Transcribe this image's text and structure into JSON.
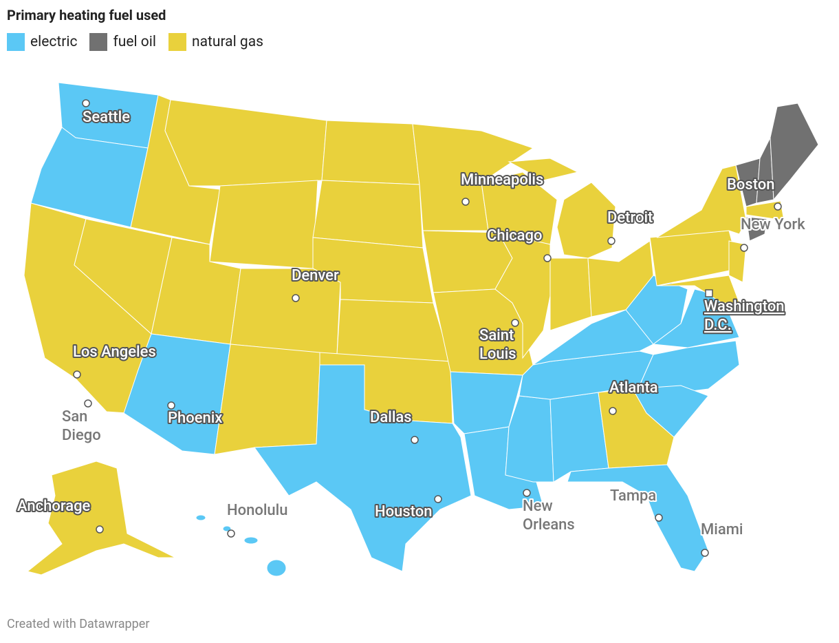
{
  "title": "Primary heating fuel used",
  "legend": [
    {
      "label": "electric",
      "color": "#5bc8f5"
    },
    {
      "label": "fuel oil",
      "color": "#717171"
    },
    {
      "label": "natural gas",
      "color": "#e9d13c"
    }
  ],
  "cities": [
    {
      "lines": [
        "Seattle"
      ]
    },
    {
      "lines": [
        "Minneapolis"
      ]
    },
    {
      "lines": [
        "Boston"
      ]
    },
    {
      "lines": [
        "Detroit"
      ]
    },
    {
      "lines": [
        "New York"
      ]
    },
    {
      "lines": [
        "Chicago"
      ]
    },
    {
      "lines": [
        "Denver"
      ]
    },
    {
      "lines": [
        "Washington",
        "D.C."
      ]
    },
    {
      "lines": [
        "Saint",
        "Louis"
      ]
    },
    {
      "lines": [
        "Los Angeles"
      ]
    },
    {
      "lines": [
        "Atlanta"
      ]
    },
    {
      "lines": [
        "San",
        "Diego"
      ]
    },
    {
      "lines": [
        "Phoenix"
      ]
    },
    {
      "lines": [
        "Dallas"
      ]
    },
    {
      "lines": [
        "Anchorage"
      ]
    },
    {
      "lines": [
        "Honolulu"
      ]
    },
    {
      "lines": [
        "Houston"
      ]
    },
    {
      "lines": [
        "New",
        "Orleans"
      ]
    },
    {
      "lines": [
        "Tampa"
      ]
    },
    {
      "lines": [
        "Miami"
      ]
    }
  ],
  "footer": "Created with Datawrapper"
}
